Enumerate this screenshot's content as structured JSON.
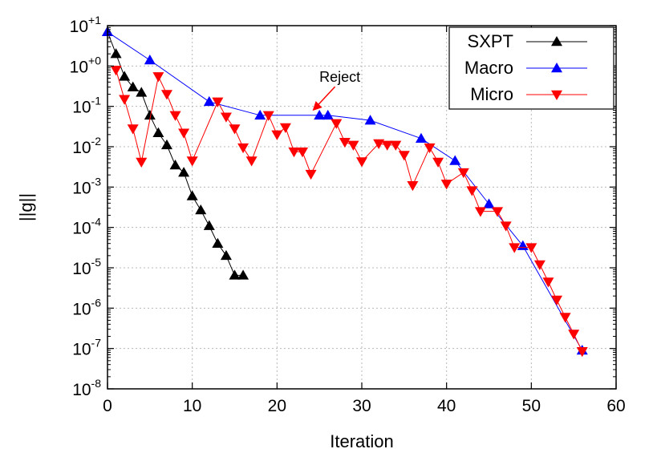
{
  "chart_data": {
    "type": "scatter",
    "xlabel": "Iteration",
    "ylabel": "||g||",
    "xlim": [
      0,
      60
    ],
    "ylim_exponent": [
      -8,
      1
    ],
    "yscale": "log",
    "x_ticks": [
      "0",
      "10",
      "20",
      "30",
      "40",
      "50",
      "60"
    ],
    "y_ticks": [
      {
        "base": "10",
        "exp": "-8"
      },
      {
        "base": "10",
        "exp": "-7"
      },
      {
        "base": "10",
        "exp": "-6"
      },
      {
        "base": "10",
        "exp": "-5"
      },
      {
        "base": "10",
        "exp": "-4"
      },
      {
        "base": "10",
        "exp": "-3"
      },
      {
        "base": "10",
        "exp": "-2"
      },
      {
        "base": "10",
        "exp": "-1"
      },
      {
        "base": "10",
        "exp": "+0"
      },
      {
        "base": "10",
        "exp": "+1"
      }
    ],
    "grid": true,
    "legend_position": "top-right",
    "series": [
      {
        "name": "SXPT",
        "color": "#000000",
        "marker": "triangle-up",
        "points": [
          [
            0,
            7.0
          ],
          [
            1,
            2.0
          ],
          [
            2,
            0.55
          ],
          [
            3,
            0.3
          ],
          [
            4,
            0.22
          ],
          [
            5,
            0.06
          ],
          [
            6,
            0.022
          ],
          [
            7,
            0.011
          ],
          [
            8,
            0.0035
          ],
          [
            9,
            0.0023
          ],
          [
            10,
            0.0006
          ],
          [
            11,
            0.00027
          ],
          [
            12,
            0.00011
          ],
          [
            13,
            4e-05
          ],
          [
            14,
            2e-05
          ],
          [
            15,
            6.5e-06
          ],
          [
            16,
            6.5e-06
          ]
        ]
      },
      {
        "name": "Macro",
        "color": "#0000ff",
        "marker": "triangle-up",
        "points": [
          [
            0,
            7.0
          ],
          [
            5,
            1.4
          ],
          [
            12,
            0.13
          ],
          [
            18,
            0.06
          ],
          [
            25,
            0.06
          ],
          [
            26,
            0.06
          ],
          [
            31,
            0.045
          ],
          [
            37,
            0.016
          ],
          [
            41,
            0.0045
          ],
          [
            45,
            0.00038
          ],
          [
            49,
            3.5e-05
          ],
          [
            56,
            9e-08
          ]
        ]
      },
      {
        "name": "Micro",
        "color": "#ff0000",
        "marker": "triangle-down",
        "points": [
          [
            1,
            0.8
          ],
          [
            2,
            0.15
          ],
          [
            3,
            0.028
          ],
          [
            4,
            0.0042
          ],
          [
            6,
            0.55
          ],
          [
            7,
            0.2
          ],
          [
            8,
            0.06
          ],
          [
            9,
            0.022
          ],
          [
            10,
            0.0045
          ],
          [
            13,
            0.13
          ],
          [
            14,
            0.055
          ],
          [
            15,
            0.028
          ],
          [
            16,
            0.0095
          ],
          [
            17,
            0.0045
          ],
          [
            19,
            0.06
          ],
          [
            20,
            0.02
          ],
          [
            21,
            0.03
          ],
          [
            22,
            0.0075
          ],
          [
            23,
            0.0075
          ],
          [
            24,
            0.0021
          ],
          [
            27,
            0.038
          ],
          [
            28,
            0.013
          ],
          [
            29,
            0.011
          ],
          [
            30,
            0.0043
          ],
          [
            32,
            0.012
          ],
          [
            33,
            0.011
          ],
          [
            34,
            0.011
          ],
          [
            35,
            0.0062
          ],
          [
            36,
            0.0011
          ],
          [
            38,
            0.0095
          ],
          [
            39,
            0.0042
          ],
          [
            40,
            0.0012
          ],
          [
            42,
            0.0023
          ],
          [
            43,
            0.00082
          ],
          [
            44,
            0.00025
          ],
          [
            46,
            0.00025
          ],
          [
            47,
            0.00011
          ],
          [
            48,
            3.2e-05
          ],
          [
            50,
            3.2e-05
          ],
          [
            51,
            1.2e-05
          ],
          [
            52,
            4.5e-06
          ],
          [
            53,
            1.6e-06
          ],
          [
            54,
            6e-07
          ],
          [
            55,
            2.3e-07
          ],
          [
            56,
            8.5e-08
          ]
        ]
      }
    ],
    "annotations": [
      {
        "text": "Reject",
        "target_x": 24,
        "target_y": 0.065
      }
    ]
  }
}
